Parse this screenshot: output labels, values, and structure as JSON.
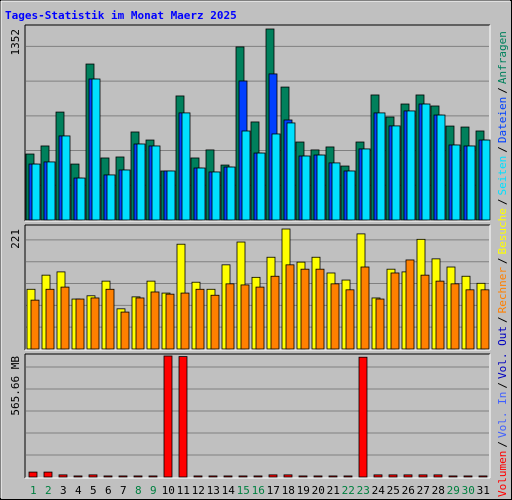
{
  "chart_data": [
    {
      "type": "bar",
      "title": "Tages-Statistik im Monat Maerz 2025",
      "series": [
        {
          "color": "#00805C",
          "values": [
            467,
            524,
            764,
            396,
            1104,
            439,
            446,
            623,
            566,
            347,
            878,
            439,
            496,
            389,
            1225,
            694,
            1352,
            941,
            552,
            496,
            517,
            382,
            552,
            885,
            729,
            821,
            885,
            807,
            665,
            658,
            630
          ]
        },
        {
          "color": "#0040FF",
          "values": [
            396,
            411,
            595,
            297,
            998,
            319,
            354,
            538,
            524,
            347,
            758,
            368,
            340,
            375,
            984,
            474,
            1034,
            708,
            453,
            460,
            404,
            347,
            503,
            758,
            666,
            772,
            821,
            743,
            531,
            524,
            566
          ]
        },
        {
          "color": "#00E0FF",
          "values": [
            396,
            411,
            595,
            297,
            998,
            319,
            354,
            538,
            524,
            347,
            758,
            368,
            340,
            375,
            630,
            474,
            609,
            687,
            453,
            460,
            404,
            347,
            503,
            758,
            666,
            772,
            821,
            743,
            531,
            524,
            566
          ]
        }
      ],
      "ylim": [
        0,
        1352
      ],
      "yticks": [
        1352
      ]
    },
    {
      "type": "bar",
      "series": [
        {
          "color": "#FFFF00",
          "values": [
            110,
            136,
            142,
            92,
            98,
            125,
            74,
            96,
            125,
            103,
            193,
            123,
            110,
            155,
            197,
            132,
            169,
            221,
            160,
            169,
            140,
            127,
            212,
            94,
            147,
            142,
            202,
            166,
            151,
            134,
            121
          ]
        },
        {
          "color": "#FF8000",
          "values": [
            90,
            110,
            114,
            92,
            94,
            110,
            68,
            94,
            105,
            101,
            103,
            110,
            99,
            120,
            118,
            114,
            134,
            155,
            147,
            147,
            120,
            109,
            151,
            92,
            140,
            164,
            136,
            125,
            120,
            109,
            109
          ]
        }
      ],
      "ylim": [
        0,
        221
      ],
      "yticks": [
        221
      ]
    },
    {
      "type": "bar",
      "categories": [
        "1",
        "2",
        "3",
        "4",
        "5",
        "6",
        "7",
        "8",
        "9",
        "10",
        "11",
        "12",
        "13",
        "14",
        "15",
        "16",
        "17",
        "18",
        "19",
        "20",
        "21",
        "22",
        "23",
        "24",
        "25",
        "26",
        "27",
        "28",
        "29",
        "30",
        "31"
      ],
      "category_colors": [
        "#008040",
        "#008040",
        "#000000",
        "#000000",
        "#000000",
        "#000000",
        "#000000",
        "#008040",
        "#008040",
        "#000000",
        "#000000",
        "#000000",
        "#000000",
        "#000000",
        "#008040",
        "#008040",
        "#000000",
        "#000000",
        "#000000",
        "#000000",
        "#000000",
        "#008040",
        "#008040",
        "#000000",
        "#000000",
        "#000000",
        "#000000",
        "#000000",
        "#008040",
        "#008040",
        "#000000"
      ],
      "series": [
        {
          "color": "#FF0000",
          "values": [
            23,
            23,
            10,
            5,
            10,
            5,
            5,
            5,
            5,
            565.66,
            563,
            5,
            5,
            5,
            5,
            5,
            10,
            10,
            5,
            5,
            5,
            5,
            560,
            10,
            10,
            10,
            10,
            10,
            5,
            5,
            5
          ]
        }
      ],
      "ylim": [
        0,
        565.66
      ],
      "yticks": [
        {
          "value": 565.66,
          "label": "565.66 MB"
        }
      ]
    }
  ],
  "legend": {
    "separator": "/",
    "items": [
      {
        "name": "Volumen",
        "color": "#FF0000"
      },
      {
        "name": "Vol. In",
        "color": "#4060FF"
      },
      {
        "name": "Vol. Out",
        "color": "#0000C0"
      },
      {
        "name": "Rechner",
        "color": "#FF8000"
      },
      {
        "name": "Besuche",
        "color": "#FFFF00"
      },
      {
        "name": "Seiten",
        "color": "#00E0FF"
      },
      {
        "name": "Dateien",
        "color": "#0040FF"
      },
      {
        "name": "Anfragen",
        "color": "#00805C"
      }
    ]
  }
}
